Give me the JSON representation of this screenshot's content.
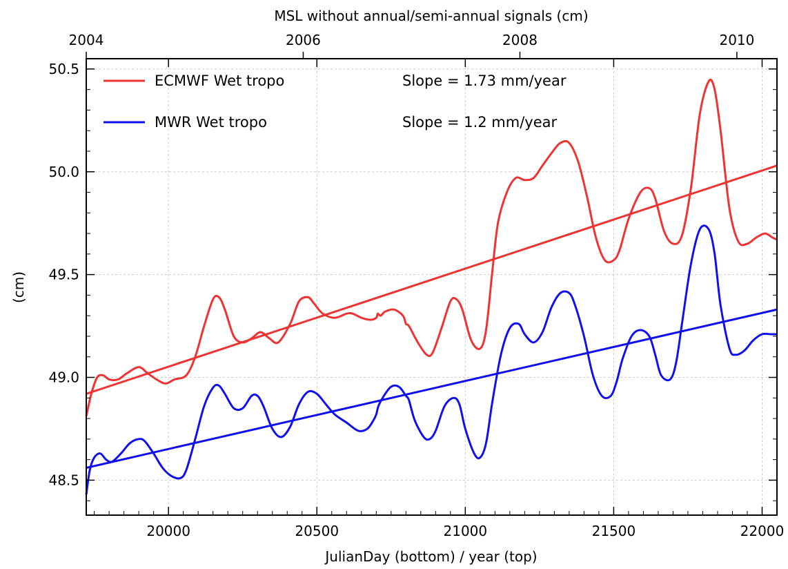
{
  "chart_data": {
    "type": "line",
    "title": "MSL without annual/semi-annual signals (cm)",
    "xlabel": "JulianDay (bottom) / year (top)",
    "ylabel": "(cm)",
    "xlim": [
      19723,
      22050
    ],
    "ylim": [
      48.33,
      50.55
    ],
    "x_ticks": [
      20000,
      20500,
      21000,
      21500,
      22000
    ],
    "y_ticks": [
      48.5,
      49.0,
      49.5,
      50.0,
      50.5
    ],
    "y_tick_labels": [
      "48.5",
      "49.0",
      "49.5",
      "50.0",
      "50.5"
    ],
    "top_ticks": [
      {
        "label": "2004",
        "x": 19723
      },
      {
        "label": "2006",
        "x": 20454
      },
      {
        "label": "2008",
        "x": 21184
      },
      {
        "label": "2010",
        "x": 21915
      }
    ],
    "grid": true,
    "legend_position": "top-left",
    "series": [
      {
        "name": "ECMWF Wet tropo",
        "color": "#ee3333",
        "slope_label": "Slope = 1.73 mm/year",
        "x": [
          19723,
          19740,
          19760,
          19780,
          19800,
          19830,
          19860,
          19900,
          19930,
          19960,
          19990,
          20020,
          20060,
          20090,
          20120,
          20150,
          20170,
          20190,
          20220,
          20250,
          20280,
          20310,
          20340,
          20370,
          20410,
          20440,
          20470,
          20490,
          20520,
          20560,
          20600,
          20620,
          20650,
          20680,
          20700,
          20705,
          20715,
          20730,
          20760,
          20790,
          20800,
          20810,
          20840,
          20870,
          20890,
          20920,
          20950,
          20970,
          20990,
          21020,
          21050,
          21070,
          21090,
          21110,
          21140,
          21170,
          21200,
          21230,
          21260,
          21290,
          21320,
          21350,
          21380,
          21410,
          21440,
          21470,
          21500,
          21520,
          21550,
          21590,
          21620,
          21640,
          21670,
          21700,
          21730,
          21760,
          21790,
          21820,
          21840,
          21860,
          21890,
          21920,
          21950,
          21980,
          22010,
          22035,
          22050
        ],
        "y": [
          48.81,
          48.92,
          49.0,
          49.01,
          48.99,
          48.99,
          49.02,
          49.05,
          49.02,
          48.99,
          48.97,
          48.99,
          49.01,
          49.1,
          49.25,
          49.38,
          49.39,
          49.33,
          49.2,
          49.17,
          49.19,
          49.22,
          49.19,
          49.17,
          49.26,
          49.37,
          49.39,
          49.36,
          49.31,
          49.29,
          49.31,
          49.31,
          49.29,
          49.28,
          49.29,
          49.31,
          49.3,
          49.32,
          49.33,
          49.3,
          49.26,
          49.25,
          49.17,
          49.11,
          49.12,
          49.24,
          49.37,
          49.38,
          49.33,
          49.18,
          49.14,
          49.23,
          49.5,
          49.75,
          49.9,
          49.97,
          49.96,
          49.97,
          50.03,
          50.09,
          50.14,
          50.14,
          50.05,
          49.88,
          49.68,
          49.57,
          49.57,
          49.62,
          49.77,
          49.9,
          49.92,
          49.87,
          49.71,
          49.65,
          49.69,
          49.92,
          50.28,
          50.44,
          50.4,
          50.2,
          49.82,
          49.66,
          49.65,
          49.68,
          49.7,
          49.68,
          49.67
        ],
        "trend": {
          "x": [
            19723,
            22050
          ],
          "y": [
            48.92,
            50.03
          ]
        }
      },
      {
        "name": "MWR Wet tropo",
        "color": "#1010ee",
        "slope_label": "Slope = 1.2 mm/year",
        "x": [
          19723,
          19735,
          19750,
          19770,
          19790,
          19810,
          19840,
          19870,
          19900,
          19920,
          19950,
          19980,
          20010,
          20040,
          20060,
          20090,
          20120,
          20150,
          20170,
          20190,
          20220,
          20250,
          20280,
          20300,
          20320,
          20350,
          20380,
          20410,
          20440,
          20470,
          20500,
          20530,
          20560,
          20600,
          20640,
          20670,
          20690,
          20700,
          20710,
          20740,
          20760,
          20780,
          20800,
          20810,
          20830,
          20860,
          20880,
          20900,
          20930,
          20960,
          20980,
          21000,
          21030,
          21050,
          21070,
          21090,
          21120,
          21150,
          21180,
          21200,
          21230,
          21260,
          21290,
          21320,
          21350,
          21370,
          21400,
          21430,
          21460,
          21490,
          21510,
          21530,
          21560,
          21590,
          21620,
          21640,
          21660,
          21690,
          21710,
          21730,
          21760,
          21790,
          21820,
          21840,
          21860,
          21890,
          21910,
          21940,
          21970,
          22000,
          22030,
          22050
        ],
        "y": [
          48.43,
          48.55,
          48.61,
          48.63,
          48.6,
          48.59,
          48.63,
          48.68,
          48.7,
          48.69,
          48.63,
          48.56,
          48.52,
          48.51,
          48.55,
          48.7,
          48.86,
          48.95,
          48.96,
          48.92,
          48.85,
          48.85,
          48.91,
          48.91,
          48.86,
          48.75,
          48.71,
          48.76,
          48.87,
          48.93,
          48.92,
          48.87,
          48.82,
          48.78,
          48.74,
          48.75,
          48.79,
          48.82,
          48.87,
          48.94,
          48.96,
          48.95,
          48.91,
          48.89,
          48.79,
          48.71,
          48.7,
          48.74,
          48.86,
          48.9,
          48.87,
          48.75,
          48.63,
          48.61,
          48.68,
          48.87,
          49.11,
          49.24,
          49.26,
          49.21,
          49.17,
          49.22,
          49.34,
          49.41,
          49.41,
          49.35,
          49.2,
          49.01,
          48.91,
          48.91,
          48.98,
          49.09,
          49.2,
          49.23,
          49.2,
          49.11,
          49.01,
          48.99,
          49.07,
          49.26,
          49.55,
          49.72,
          49.72,
          49.6,
          49.35,
          49.14,
          49.11,
          49.13,
          49.18,
          49.21,
          49.21,
          49.21
        ],
        "trend": {
          "x": [
            19723,
            22050
          ],
          "y": [
            48.56,
            49.33
          ]
        }
      }
    ]
  }
}
